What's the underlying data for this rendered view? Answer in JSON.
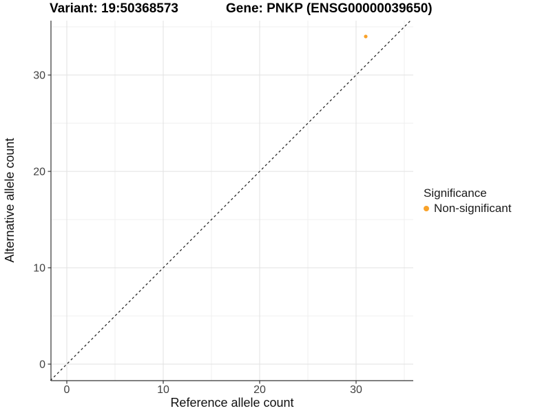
{
  "page": {
    "background": "#ffffff"
  },
  "header": {
    "variant_title": "Variant: 19:50368573",
    "gene_title": "Gene: PNKP (ENSG00000039650)"
  },
  "chart_data": {
    "type": "scatter",
    "title_left": "Variant: 19:50368573",
    "title_right": "Gene: PNKP (ENSG00000039650)",
    "xlabel": "Reference allele count",
    "ylabel": "Alternative allele count",
    "xlim": [
      -1.7,
      35.9
    ],
    "ylim": [
      -1.7,
      35.7
    ],
    "x_ticks": [
      0,
      10,
      20,
      30
    ],
    "y_ticks": [
      0,
      10,
      20,
      30
    ],
    "minor_grid_step": 5,
    "grid": "major and minor, light gray on white",
    "series": [
      {
        "name": "Non-significant",
        "color": "#F9A229",
        "points": [
          {
            "x": 31,
            "y": 34
          }
        ]
      }
    ],
    "reference_line": {
      "type": "identity",
      "equation": "y = x",
      "style": "dashed",
      "color": "#1a1a1a"
    },
    "legend": {
      "title": "Significance",
      "position": "right",
      "entries": [
        {
          "label": "Non-significant",
          "color": "#F9A229"
        }
      ]
    },
    "styles": {
      "grid_major_color": "#e2e2e2",
      "grid_minor_color": "#efefef",
      "axis_line_color": "#333333",
      "tick_label_color": "#404040",
      "axis_title_color": "#111111",
      "title_color": "#000000",
      "point_color": "#F9A229"
    }
  }
}
